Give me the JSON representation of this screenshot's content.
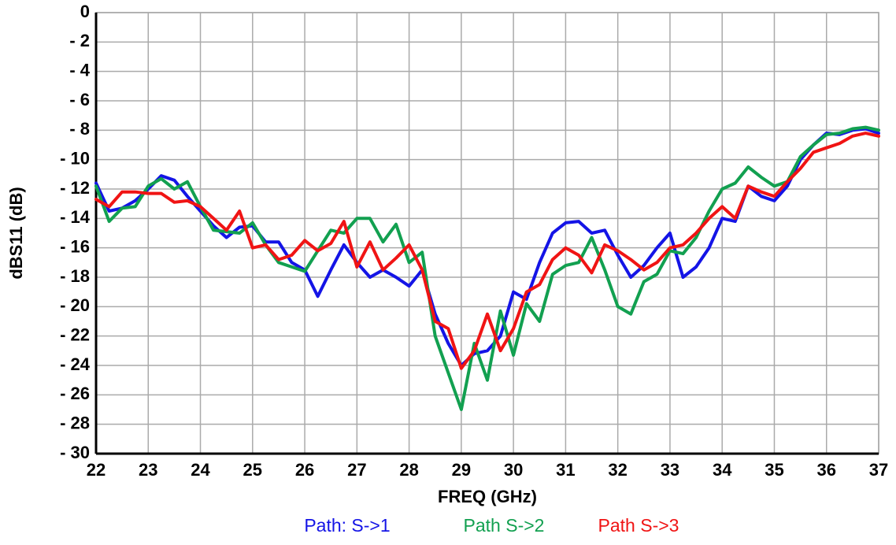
{
  "chart_data": {
    "type": "line",
    "xlabel": "FREQ (GHz)",
    "ylabel": "dBS11 (dB)",
    "x": [
      22,
      22.25,
      22.5,
      22.75,
      23,
      23.25,
      23.5,
      23.75,
      24,
      24.25,
      24.5,
      24.75,
      25,
      25.25,
      25.5,
      25.75,
      26,
      26.25,
      26.5,
      26.75,
      27,
      27.25,
      27.5,
      27.75,
      28,
      28.25,
      28.5,
      28.75,
      29,
      29.25,
      29.5,
      29.75,
      30,
      30.25,
      30.5,
      30.75,
      31,
      31.25,
      31.5,
      31.75,
      32,
      32.25,
      32.5,
      32.75,
      33,
      33.25,
      33.5,
      33.75,
      34,
      34.25,
      34.5,
      34.75,
      35,
      35.25,
      35.5,
      35.75,
      36,
      36.25,
      36.5,
      36.75,
      37
    ],
    "series": [
      {
        "name": "Path: S->1",
        "color": "#1414e6",
        "values": [
          -11.6,
          -13.5,
          -13.3,
          -12.8,
          -12.0,
          -11.1,
          -11.4,
          -12.5,
          -13.5,
          -14.5,
          -15.3,
          -14.6,
          -14.5,
          -15.6,
          -15.6,
          -17.0,
          -17.5,
          -19.3,
          -17.5,
          -15.8,
          -17.0,
          -18.0,
          -17.5,
          -18.0,
          -18.6,
          -17.5,
          -20.5,
          -22.5,
          -24.0,
          -23.2,
          -23.0,
          -22.0,
          -19.0,
          -19.5,
          -17.0,
          -15.0,
          -14.3,
          -14.2,
          -15.0,
          -14.8,
          -16.5,
          -18.0,
          -17.2,
          -16.0,
          -15.0,
          -18.0,
          -17.3,
          -16.0,
          -14.0,
          -14.2,
          -11.8,
          -12.5,
          -12.8,
          -11.8,
          -10.0,
          -9.0,
          -8.2,
          -8.3,
          -8.0,
          -7.9,
          -8.2
        ]
      },
      {
        "name": "Path S->2",
        "color": "#12a050",
        "values": [
          -11.8,
          -14.2,
          -13.3,
          -13.2,
          -11.8,
          -11.3,
          -12.0,
          -11.5,
          -13.2,
          -14.8,
          -14.9,
          -15.0,
          -14.3,
          -15.8,
          -17.0,
          -17.3,
          -17.6,
          -16.2,
          -14.8,
          -15.0,
          -14.0,
          -14.0,
          -15.6,
          -14.4,
          -17.0,
          -16.3,
          -22.0,
          -24.5,
          -27.0,
          -22.5,
          -25.0,
          -20.3,
          -23.3,
          -19.8,
          -21.0,
          -17.8,
          -17.2,
          -17.0,
          -15.3,
          -17.5,
          -20.0,
          -20.5,
          -18.3,
          -17.8,
          -16.2,
          -16.4,
          -15.3,
          -13.5,
          -12.0,
          -11.6,
          -10.5,
          -11.2,
          -11.8,
          -11.5,
          -9.8,
          -9.0,
          -8.3,
          -8.2,
          -7.9,
          -7.8,
          -8.0
        ]
      },
      {
        "name": "Path S->3",
        "color": "#f01414",
        "values": [
          -12.7,
          -13.2,
          -12.2,
          -12.2,
          -12.3,
          -12.3,
          -12.9,
          -12.8,
          -13.2,
          -14.0,
          -14.8,
          -13.5,
          -16.0,
          -15.8,
          -16.8,
          -16.5,
          -15.5,
          -16.2,
          -15.7,
          -14.2,
          -17.3,
          -15.6,
          -17.5,
          -16.7,
          -15.8,
          -17.5,
          -21.0,
          -21.5,
          -24.2,
          -23.0,
          -20.5,
          -23.0,
          -21.5,
          -19.0,
          -18.5,
          -16.8,
          -16.0,
          -16.5,
          -17.7,
          -15.8,
          -16.2,
          -16.8,
          -17.5,
          -17.0,
          -16.0,
          -15.8,
          -15.0,
          -14.0,
          -13.2,
          -14.0,
          -11.8,
          -12.2,
          -12.5,
          -11.5,
          -10.6,
          -9.5,
          -9.2,
          -8.9,
          -8.4,
          -8.2,
          -8.4
        ]
      }
    ],
    "xlim": [
      22,
      37
    ],
    "ylim": [
      -30,
      0
    ],
    "xticks": [
      22,
      23,
      24,
      25,
      26,
      27,
      28,
      29,
      30,
      31,
      32,
      33,
      34,
      35,
      36,
      37
    ],
    "yticks": [
      0,
      {
        "value": -2,
        "label": "- 2"
      },
      {
        "value": -4,
        "label": "- 4"
      },
      {
        "value": -6,
        "label": "- 6"
      },
      {
        "value": -8,
        "label": "- 8"
      },
      {
        "value": -10,
        "label": "- 10"
      },
      {
        "value": -12,
        "label": "- 12"
      },
      {
        "value": -14,
        "label": "- 14"
      },
      {
        "value": -16,
        "label": "- 16"
      },
      {
        "value": -18,
        "label": "- 18"
      },
      {
        "value": -20,
        "label": "- 20"
      },
      {
        "value": -22,
        "label": "- 22"
      },
      {
        "value": -24,
        "label": "- 24"
      },
      {
        "value": -26,
        "label": "- 26"
      },
      {
        "value": -28,
        "label": "- 28"
      },
      {
        "value": -30,
        "label": "- 30"
      }
    ],
    "grid": true
  }
}
